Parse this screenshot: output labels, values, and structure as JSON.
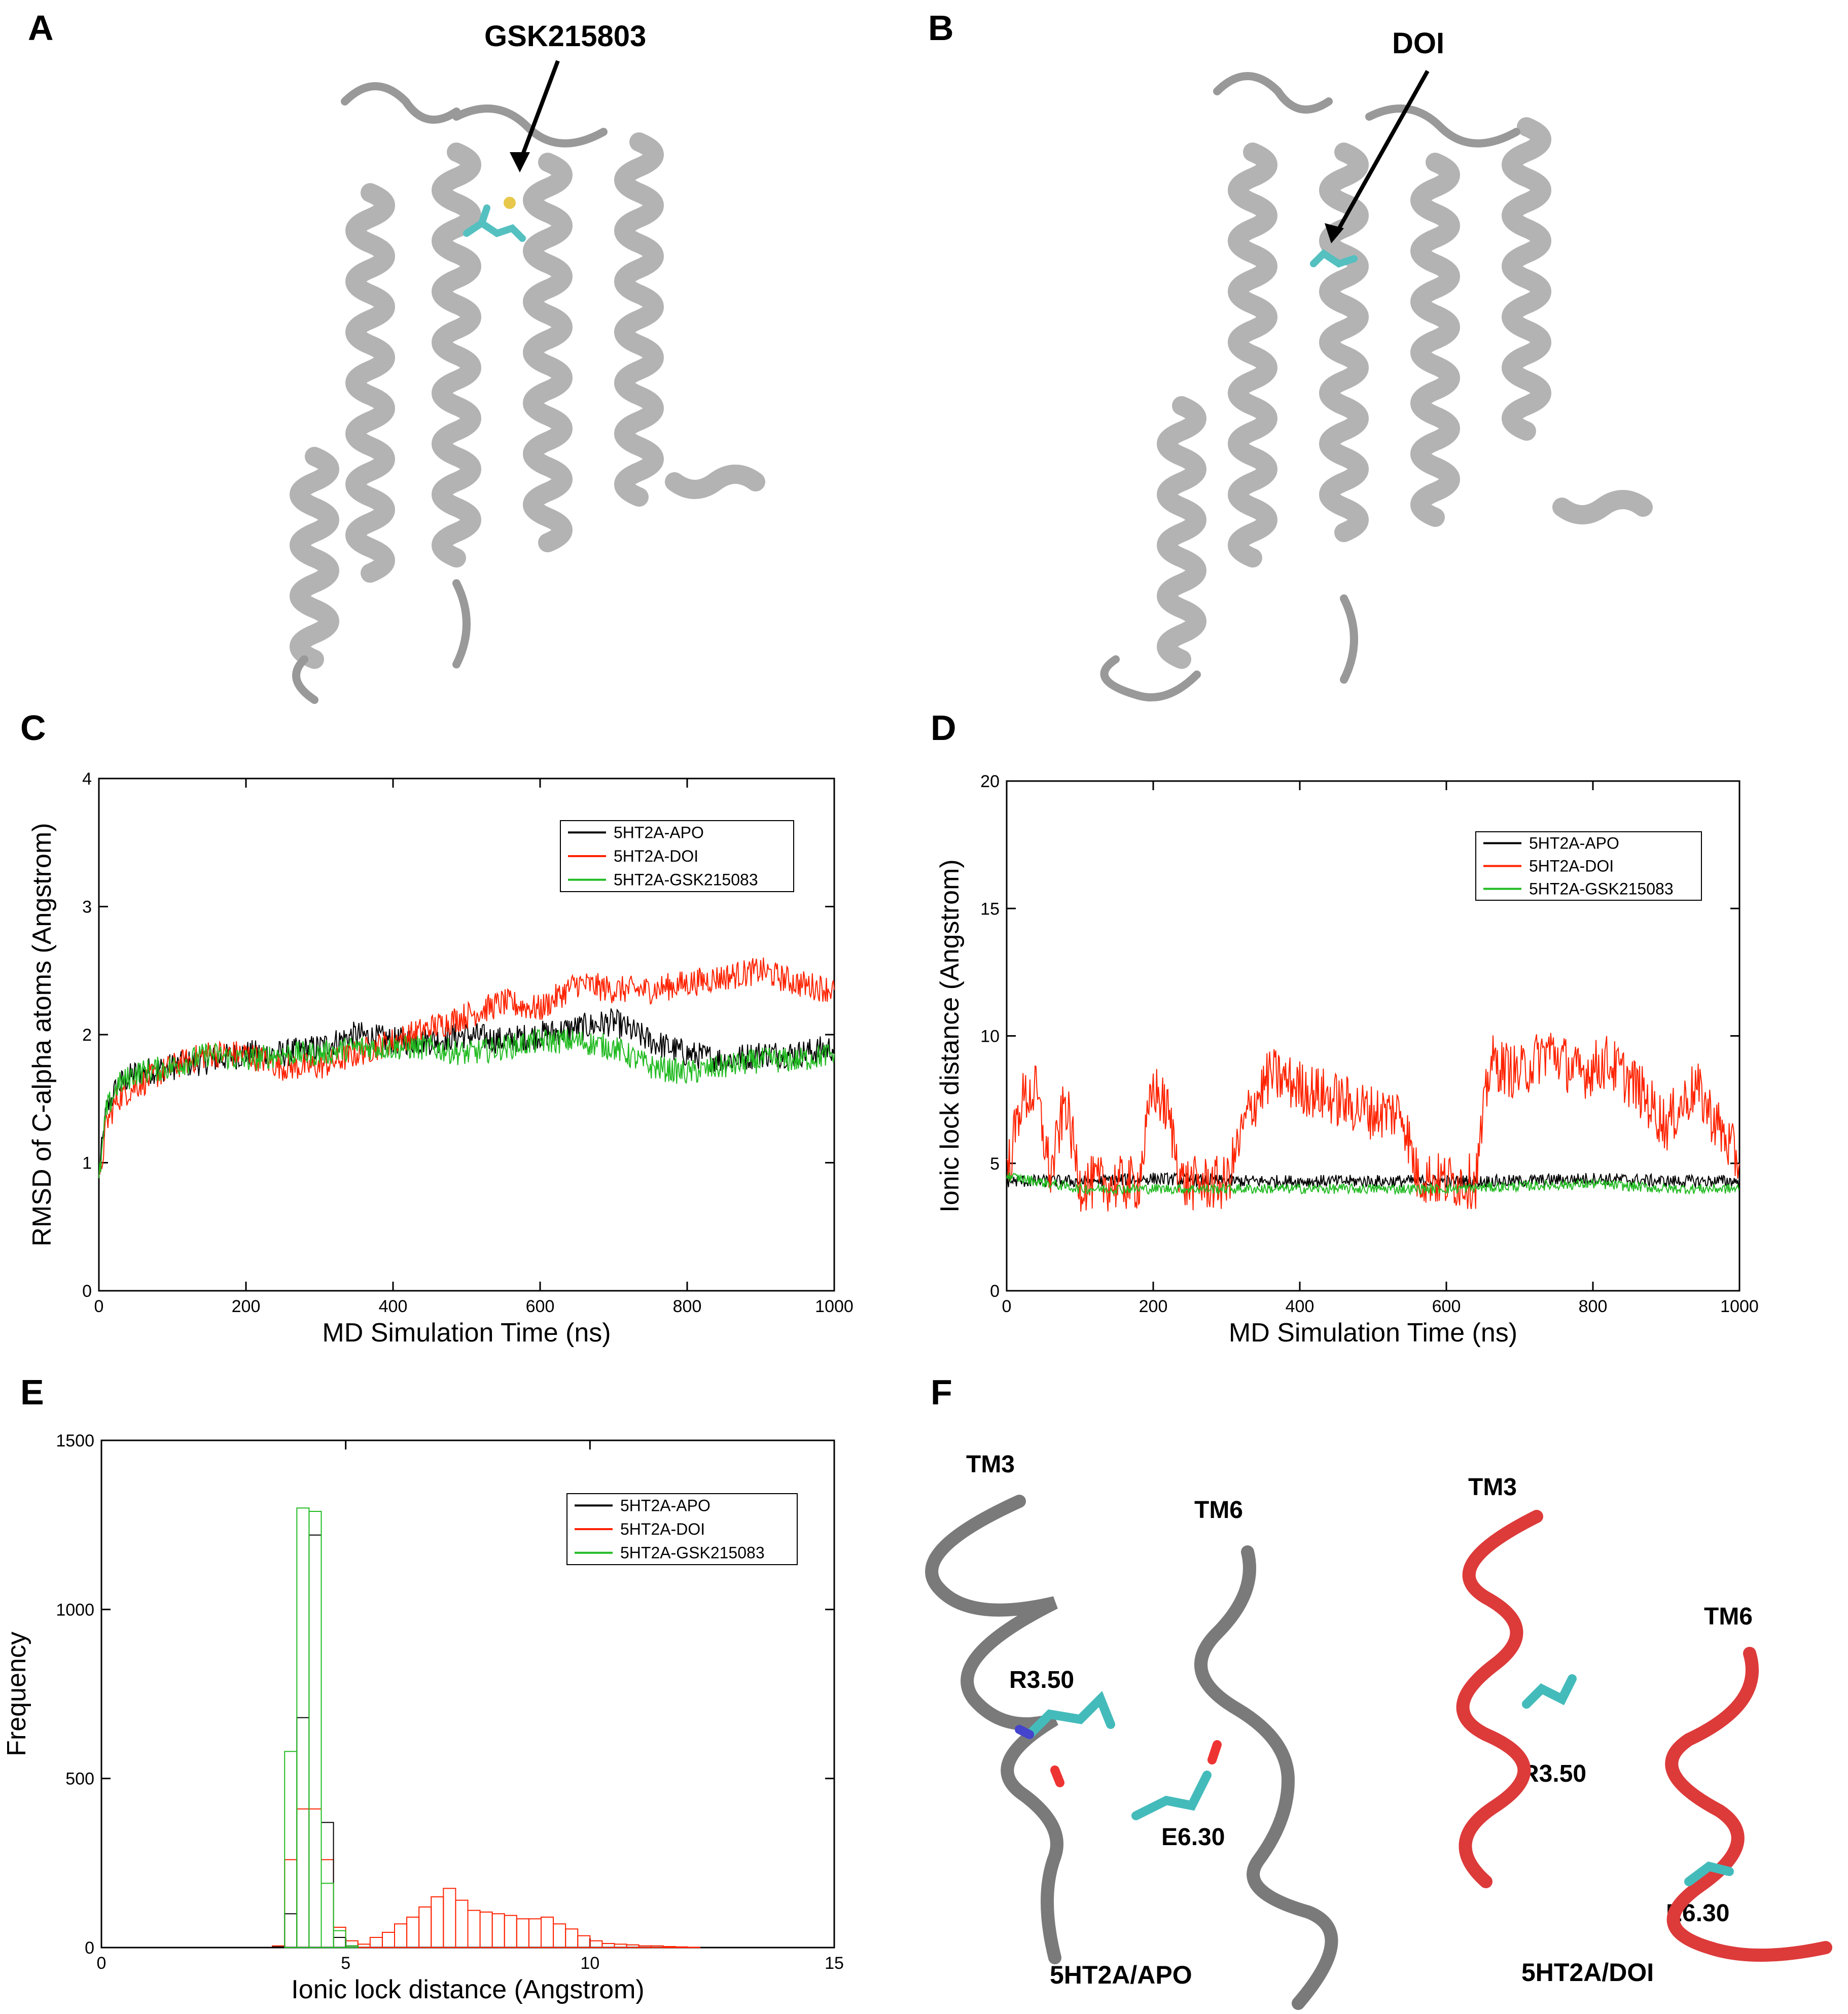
{
  "panels": {
    "A": {
      "letter": "A",
      "ligand_label": "GSK215803"
    },
    "B": {
      "letter": "B",
      "ligand_label": "DOI"
    },
    "C": {
      "letter": "C"
    },
    "D": {
      "letter": "D"
    },
    "E": {
      "letter": "E"
    },
    "F": {
      "letter": "F",
      "apo": {
        "tm3": "TM3",
        "tm6": "TM6",
        "r": "R3.50",
        "e": "E6.30",
        "caption": "5HT2A/APO"
      },
      "doi": {
        "tm3": "TM3",
        "tm6": "TM6",
        "r": "R3.50",
        "e": "E6.30",
        "caption": "5HT2A/DOI"
      }
    }
  },
  "colors": {
    "apo": "#000000",
    "doi": "#ff2200",
    "gsk": "#22bb22",
    "helix_gray": "#8c8c8c",
    "helix_red": "#dd3333",
    "ligand": "#44bbbb"
  },
  "chart_data": [
    {
      "id": "C",
      "type": "line",
      "xlabel": "MD Simulation Time (ns)",
      "ylabel": "RMSD of C-alpha atoms (Angstrom)",
      "xlim": [
        0,
        1000
      ],
      "ylim": [
        0,
        4
      ],
      "xticks": [
        "0",
        "200",
        "400",
        "600",
        "800",
        "1000"
      ],
      "yticks": [
        "0",
        "1",
        "2",
        "3",
        "4"
      ],
      "legend": [
        "5HT2A-APO",
        "5HT2A-DOI",
        "5HT2A-GSK215083"
      ],
      "series": [
        {
          "name": "5HT2A-APO",
          "x": [
            0,
            10,
            25,
            50,
            100,
            150,
            200,
            250,
            300,
            350,
            400,
            450,
            500,
            550,
            600,
            650,
            700,
            750,
            800,
            850,
            900,
            950,
            1000
          ],
          "y": [
            0.9,
            1.4,
            1.6,
            1.7,
            1.75,
            1.8,
            1.85,
            1.85,
            1.9,
            2.0,
            1.95,
            1.95,
            2.0,
            1.95,
            2.0,
            2.05,
            2.1,
            1.95,
            1.85,
            1.8,
            1.85,
            1.85,
            1.9
          ]
        },
        {
          "name": "5HT2A-DOI",
          "x": [
            0,
            10,
            25,
            50,
            100,
            150,
            200,
            250,
            300,
            350,
            400,
            450,
            500,
            550,
            600,
            650,
            700,
            750,
            800,
            850,
            900,
            950,
            1000
          ],
          "y": [
            0.8,
            1.3,
            1.5,
            1.6,
            1.75,
            1.85,
            1.85,
            1.75,
            1.75,
            1.85,
            1.95,
            2.05,
            2.15,
            2.25,
            2.2,
            2.4,
            2.35,
            2.35,
            2.4,
            2.45,
            2.5,
            2.4,
            2.35
          ]
        },
        {
          "name": "5HT2A-GSK215083",
          "x": [
            0,
            10,
            25,
            50,
            100,
            150,
            200,
            250,
            300,
            350,
            400,
            450,
            500,
            550,
            600,
            650,
            700,
            750,
            800,
            850,
            900,
            950,
            1000
          ],
          "y": [
            0.85,
            1.4,
            1.6,
            1.7,
            1.75,
            1.85,
            1.8,
            1.85,
            1.85,
            1.9,
            1.9,
            1.9,
            1.85,
            1.9,
            1.95,
            1.95,
            1.9,
            1.75,
            1.7,
            1.75,
            1.8,
            1.8,
            1.85
          ]
        }
      ]
    },
    {
      "id": "D",
      "type": "line",
      "xlabel": "MD Simulation Time (ns)",
      "ylabel": "Ionic lock distance (Angstrom)",
      "xlim": [
        0,
        1000
      ],
      "ylim": [
        0,
        20
      ],
      "xticks": [
        "0",
        "200",
        "400",
        "600",
        "800",
        "1000"
      ],
      "yticks": [
        "0",
        "5",
        "10",
        "15",
        "20"
      ],
      "legend": [
        "5HT2A-APO",
        "5HT2A-DOI",
        "5HT2A-GSK215083"
      ],
      "series": [
        {
          "name": "5HT2A-APO",
          "x": [
            0,
            100,
            200,
            300,
            400,
            500,
            600,
            700,
            800,
            900,
            1000
          ],
          "y": [
            4.3,
            4.3,
            4.4,
            4.3,
            4.3,
            4.3,
            4.3,
            4.3,
            4.4,
            4.3,
            4.3
          ]
        },
        {
          "name": "5HT2A-DOI",
          "x": [
            0,
            20,
            40,
            60,
            80,
            100,
            180,
            200,
            220,
            240,
            300,
            330,
            360,
            400,
            450,
            500,
            540,
            560,
            600,
            640,
            660,
            700,
            740,
            780,
            820,
            860,
            900,
            940,
            980,
            1000
          ],
          "y": [
            4.5,
            7.5,
            7.8,
            4.5,
            7.5,
            4.2,
            4.2,
            8.0,
            7.0,
            4.2,
            4.2,
            7.0,
            8.5,
            8.0,
            7.5,
            7.0,
            7.0,
            4.5,
            4.3,
            4.3,
            9.0,
            8.5,
            9.5,
            8.5,
            9.0,
            8.0,
            6.5,
            8.0,
            6.0,
            5.0
          ]
        },
        {
          "name": "5HT2A-GSK215083",
          "x": [
            0,
            100,
            200,
            300,
            400,
            500,
            600,
            700,
            800,
            900,
            1000
          ],
          "y": [
            4.5,
            4.0,
            4.0,
            4.0,
            4.0,
            4.0,
            4.0,
            4.1,
            4.2,
            4.0,
            4.0
          ]
        }
      ]
    },
    {
      "id": "E",
      "type": "bar",
      "xlabel": "Ionic lock distance (Angstrom)",
      "ylabel": "Frequency",
      "xlim": [
        0,
        15
      ],
      "ylim": [
        0,
        1500
      ],
      "xticks": [
        "0",
        "5",
        "10",
        "15"
      ],
      "yticks": [
        "0",
        "500",
        "1000",
        "1500"
      ],
      "legend": [
        "5HT2A-APO",
        "5HT2A-DOI",
        "5HT2A-GSK215083"
      ],
      "bin_width": 0.25,
      "series": [
        {
          "name": "5HT2A-APO",
          "bin_start": [
            3.5,
            3.75,
            4.0,
            4.25,
            4.5,
            4.75,
            5.0
          ],
          "counts": [
            2,
            100,
            680,
            1220,
            370,
            30,
            5
          ]
        },
        {
          "name": "5HT2A-DOI",
          "bin_start": [
            3.5,
            3.75,
            4.0,
            4.25,
            4.5,
            4.75,
            5.0,
            5.25,
            5.5,
            5.75,
            6.0,
            6.25,
            6.5,
            6.75,
            7.0,
            7.25,
            7.5,
            7.75,
            8.0,
            8.25,
            8.5,
            8.75,
            9.0,
            9.25,
            9.5,
            9.75,
            10.0,
            10.25,
            10.5,
            10.75,
            11.0,
            11.25,
            11.5,
            11.75,
            12.0
          ],
          "counts": [
            5,
            260,
            410,
            410,
            260,
            60,
            20,
            10,
            30,
            45,
            70,
            90,
            120,
            150,
            175,
            140,
            110,
            105,
            100,
            95,
            85,
            85,
            90,
            70,
            55,
            35,
            20,
            12,
            10,
            8,
            5,
            5,
            3,
            2,
            1
          ]
        },
        {
          "name": "5HT2A-GSK215083",
          "bin_start": [
            3.5,
            3.75,
            4.0,
            4.25,
            4.5,
            4.75,
            5.0
          ],
          "counts": [
            0,
            580,
            1300,
            1290,
            190,
            50,
            5
          ]
        }
      ]
    }
  ]
}
